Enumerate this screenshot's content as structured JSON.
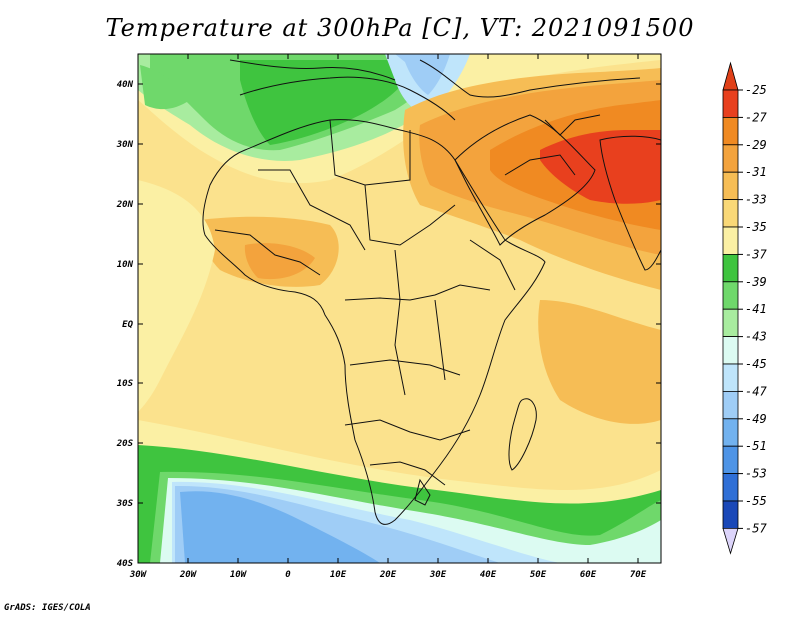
{
  "title": "Temperature at 300hPa [C], VT: 2021091500",
  "footer": "GrADS: IGES/COLA",
  "axes": {
    "lat_ticks": [
      "40N",
      "30N",
      "20N",
      "10N",
      "EQ",
      "10S",
      "20S",
      "30S",
      "40S"
    ],
    "lon_ticks": [
      "30W",
      "20W",
      "10W",
      "0",
      "10E",
      "20E",
      "30E",
      "40E",
      "50E",
      "60E",
      "70E"
    ]
  },
  "colorbar": {
    "labels": [
      "-25",
      "-27",
      "-29",
      "-31",
      "-33",
      "-35",
      "-37",
      "-39",
      "-41",
      "-43",
      "-45",
      "-47",
      "-49",
      "-51",
      "-53",
      "-55",
      "-57"
    ],
    "colors": [
      "#e8401e",
      "#f08a22",
      "#f3a33d",
      "#f6bd55",
      "#f9d877",
      "#fbf0a4",
      "#3fc43f",
      "#6fd86b",
      "#a8ec9f",
      "#dcfbf2",
      "#bfe5fb",
      "#9fcdf6",
      "#72b2ef",
      "#4e94e6",
      "#2f6fd6",
      "#1a48b8",
      "#0c2c8a"
    ],
    "top_triangle": "#e04018",
    "bottom_triangle": "#dcd4fa"
  }
}
